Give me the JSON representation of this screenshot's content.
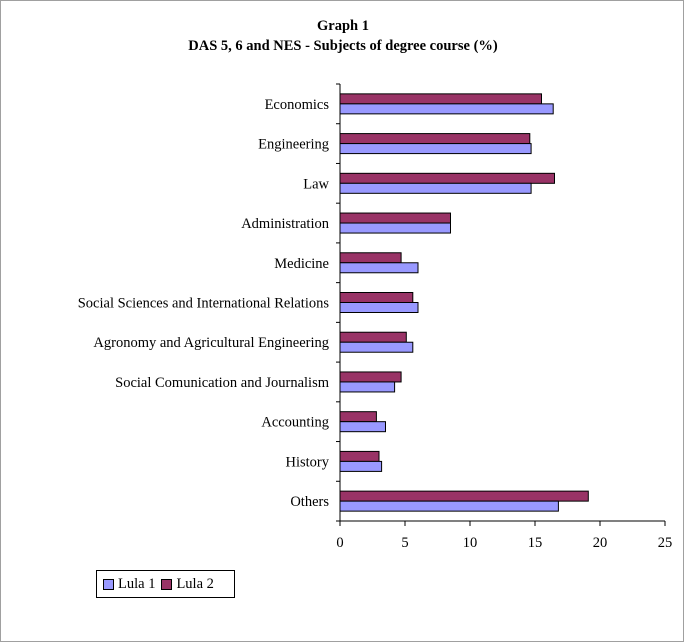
{
  "chart_data": {
    "type": "bar",
    "orientation": "horizontal",
    "title": "Graph 1",
    "subtitle": "DAS 5, 6 and NES - Subjects of degree course (%)",
    "categories": [
      "Economics",
      "Engineering",
      "Law",
      "Administration",
      "Medicine",
      "Social Sciences and International Relations",
      "Agronomy and Agricultural Engineering",
      "Social Comunication and Journalism",
      "Accounting",
      "History",
      "Others"
    ],
    "series": [
      {
        "name": "Lula 1",
        "color": "#9999ff",
        "values": [
          16.4,
          14.7,
          14.7,
          8.5,
          6.0,
          6.0,
          5.6,
          4.2,
          3.5,
          3.2,
          16.8
        ]
      },
      {
        "name": "Lula 2",
        "color": "#993366",
        "values": [
          15.5,
          14.6,
          16.5,
          8.5,
          4.7,
          5.6,
          5.1,
          4.7,
          2.8,
          3.0,
          19.1
        ]
      }
    ],
    "xlim": [
      0,
      25
    ],
    "xticks": [
      "0",
      "5",
      "10",
      "15",
      "20",
      "25"
    ],
    "grid": false,
    "legend_position": "bottom-left"
  }
}
